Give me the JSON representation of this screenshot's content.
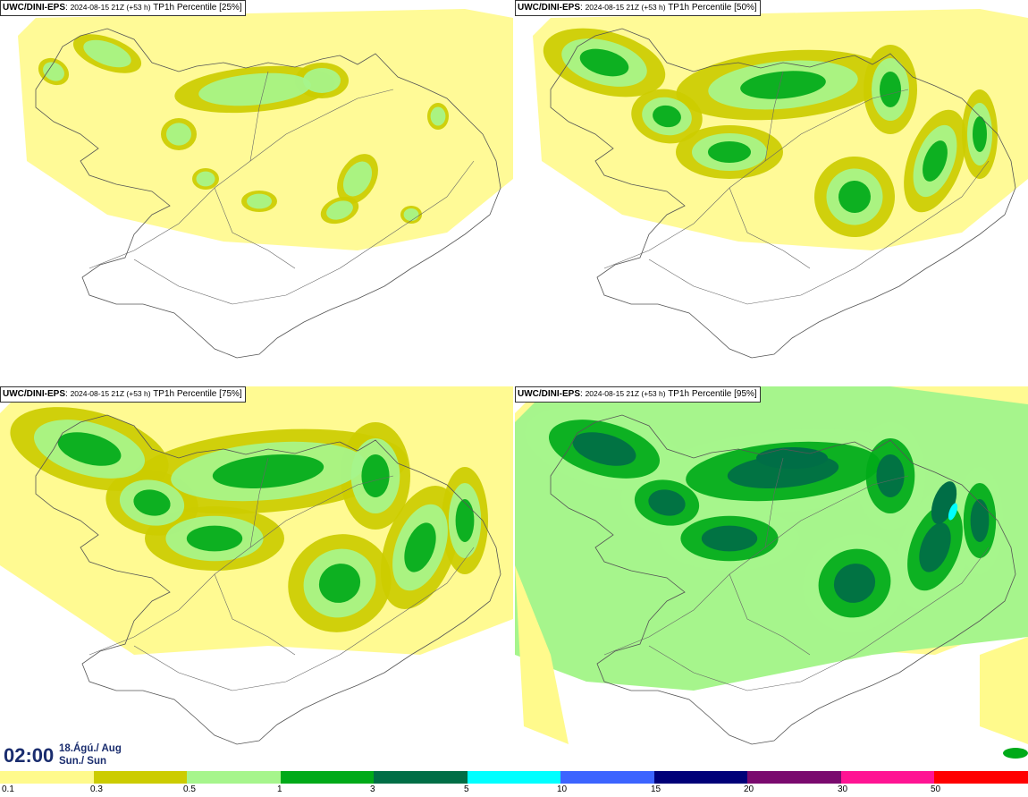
{
  "panels": [
    {
      "model": "UWC/DINI-EPS",
      "run": "2024-08-15 21Z (+53 h)",
      "field": "TP1h Percentile",
      "percentile": "[25%]",
      "intensity": 0
    },
    {
      "model": "UWC/DINI-EPS",
      "run": "2024-08-15 21Z (+53 h)",
      "field": "TP1h Percentile",
      "percentile": "[50%]",
      "intensity": 1
    },
    {
      "model": "UWC/DINI-EPS",
      "run": "2024-08-15 21Z (+53 h)",
      "field": "TP1h Percentile",
      "percentile": "[75%]",
      "intensity": 2
    },
    {
      "model": "UWC/DINI-EPS",
      "run": "2024-08-15 21Z (+53 h)",
      "field": "TP1h Percentile",
      "percentile": "[95%]",
      "intensity": 3
    }
  ],
  "valid_time": {
    "time": "02:00",
    "date": "18.Ágú./ Aug",
    "day": "Sun./ Sun"
  },
  "legend": {
    "thresholds": [
      "0.1",
      "0.3",
      "0.5",
      "1",
      "3",
      "5",
      "10",
      "15",
      "20",
      "30",
      "50"
    ],
    "colors": [
      "#fffa8c",
      "#cccc00",
      "#a6f58c",
      "#00aa19",
      "#006e46",
      "#00ffff",
      "#3c64ff",
      "#000078",
      "#7a0a6e",
      "#ff1493",
      "#ff0000"
    ]
  }
}
